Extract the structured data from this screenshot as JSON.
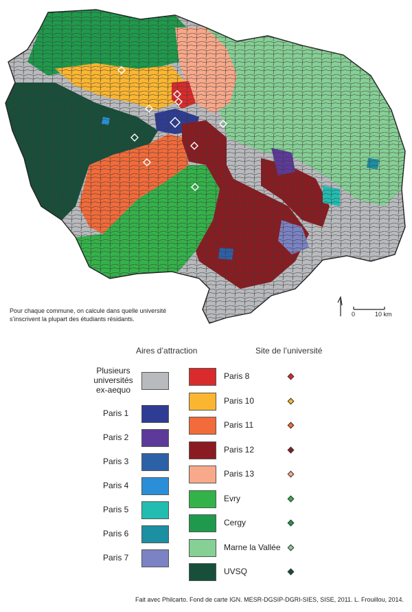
{
  "map": {
    "colors": {
      "plusieurs": "#b8babd",
      "paris1": "#2e3c94",
      "paris2": "#5d3a99",
      "paris3": "#2c61a8",
      "paris4": "#2a8fd6",
      "paris5": "#22bdb0",
      "paris6": "#1c8fa3",
      "paris7": "#7b83c4",
      "paris8": "#d92b2b",
      "paris10": "#fbb631",
      "paris11": "#f26b3a",
      "paris12": "#8a1c21",
      "paris13": "#f8a98a",
      "evry": "#34b24a",
      "cergy": "#1f9a4c",
      "marne": "#86cf95",
      "uvsq": "#174f3a"
    },
    "note": "Pour chaque commune, on calcule dans quelle université s’inscrivent la plupart des étudiants résidants.",
    "scale_start": "0",
    "scale_end": "10 km"
  },
  "legend": {
    "header_left": "Aires d’attraction",
    "header_right": "Site de l’université",
    "multi_label_1": "Plusieurs",
    "multi_label_2": "universités",
    "multi_label_3": "ex-aequo",
    "left": [
      {
        "label": "Paris 1",
        "color": "#2e3c94"
      },
      {
        "label": "Paris 2",
        "color": "#5d3a99"
      },
      {
        "label": "Paris 3",
        "color": "#2c61a8"
      },
      {
        "label": "Paris 4",
        "color": "#2a8fd6"
      },
      {
        "label": "Paris 5",
        "color": "#22bdb0"
      },
      {
        "label": "Paris 6",
        "color": "#1c8fa3"
      },
      {
        "label": "Paris 7",
        "color": "#7b83c4"
      }
    ],
    "right": [
      {
        "label": "Paris 8",
        "color": "#d92b2b"
      },
      {
        "label": "Paris 10",
        "color": "#fbb631"
      },
      {
        "label": "Paris 11",
        "color": "#f26b3a"
      },
      {
        "label": "Paris 12",
        "color": "#8a1c21"
      },
      {
        "label": "Paris 13",
        "color": "#f8a98a"
      },
      {
        "label": "Evry",
        "color": "#34b24a"
      },
      {
        "label": "Cergy",
        "color": "#1f9a4c"
      },
      {
        "label": "Marne la Vallée",
        "color": "#86cf95"
      },
      {
        "label": "UVSQ",
        "color": "#174f3a"
      }
    ]
  },
  "source": "Fait avec Philcarto. Fond de carte IGN. MESR-DGSIP-DGRI-SIES, SISE, 2011. L. Frouillou, 2014."
}
